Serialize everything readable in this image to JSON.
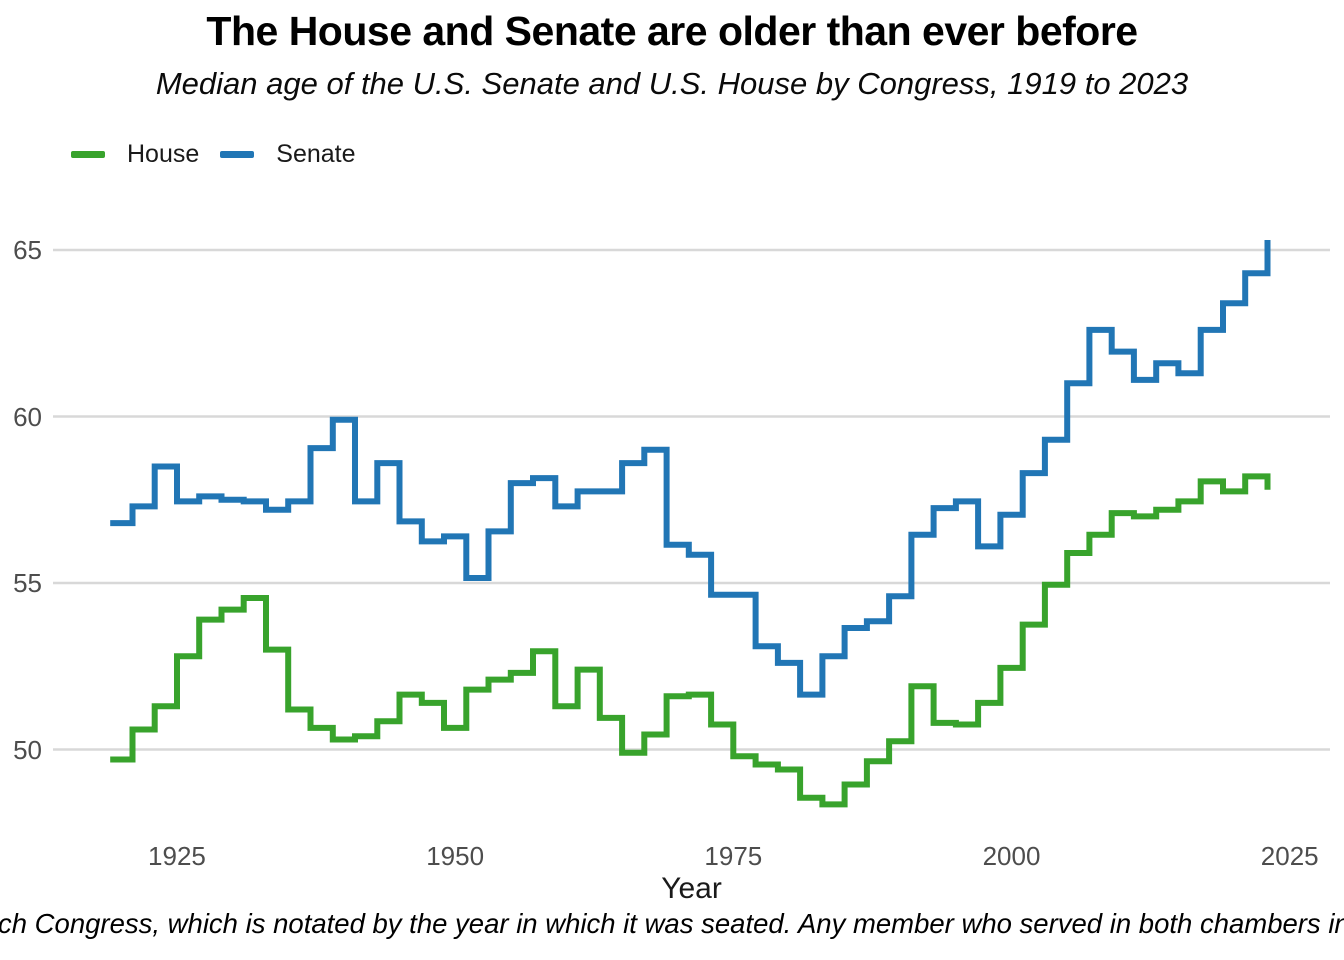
{
  "header": {
    "title": "The House and Senate are older than ever before",
    "subtitle": "Median age of the U.S. Senate and U.S. House by Congress, 1919 to 2023"
  },
  "legend": {
    "items": [
      {
        "label": "House",
        "color": "#38a32c"
      },
      {
        "label": "Senate",
        "color": "#2176b5"
      }
    ]
  },
  "caption": {
    "text": "ch Congress, which is notated by the year in which it was seated. Any member who served in both chambers in"
  },
  "chart_data": {
    "type": "line",
    "line_style": "step-hv",
    "title": "The House and Senate are older than ever before",
    "subtitle": "Median age of the U.S. Senate and U.S. House by Congress, 1919 to 2023",
    "xlabel": "Year",
    "ylabel": "",
    "grid": "horizontal-gridlines-only",
    "legend_position": "top-left",
    "xlim": [
      1917,
      2028
    ],
    "ylim": [
      48,
      66.5
    ],
    "x_ticks": [
      "1925",
      "1950",
      "1975",
      "2000",
      "2025"
    ],
    "y_ticks": [
      "50",
      "55",
      "60",
      "65"
    ],
    "x": [
      1919,
      1921,
      1923,
      1925,
      1927,
      1929,
      1931,
      1933,
      1935,
      1937,
      1939,
      1941,
      1943,
      1945,
      1947,
      1949,
      1951,
      1953,
      1955,
      1957,
      1959,
      1961,
      1963,
      1965,
      1967,
      1969,
      1971,
      1973,
      1975,
      1977,
      1979,
      1981,
      1983,
      1985,
      1987,
      1989,
      1991,
      1993,
      1995,
      1997,
      1999,
      2001,
      2003,
      2005,
      2007,
      2009,
      2011,
      2013,
      2015,
      2017,
      2019,
      2021,
      2023
    ],
    "series": [
      {
        "name": "House",
        "color": "#38a32c",
        "values": [
          49.7,
          50.6,
          51.3,
          52.8,
          53.9,
          54.2,
          54.55,
          53.0,
          51.2,
          50.65,
          50.3,
          50.4,
          50.85,
          51.65,
          51.4,
          50.65,
          51.8,
          52.1,
          52.3,
          52.95,
          51.3,
          52.4,
          50.95,
          49.9,
          50.45,
          51.6,
          51.65,
          50.75,
          49.8,
          49.55,
          49.4,
          48.55,
          48.35,
          48.95,
          49.65,
          50.25,
          51.9,
          50.8,
          50.75,
          51.4,
          52.45,
          53.75,
          54.95,
          55.9,
          56.45,
          57.1,
          57.0,
          57.2,
          57.45,
          58.05,
          57.75,
          58.2,
          57.8
        ]
      },
      {
        "name": "Senate",
        "color": "#2176b5",
        "values": [
          56.8,
          57.3,
          58.5,
          57.45,
          57.6,
          57.5,
          57.45,
          57.2,
          57.45,
          59.05,
          59.9,
          57.45,
          58.6,
          56.85,
          56.25,
          56.4,
          55.15,
          56.55,
          58.0,
          58.15,
          57.3,
          57.75,
          57.75,
          58.6,
          59.0,
          56.15,
          55.85,
          54.65,
          54.65,
          53.1,
          52.6,
          51.65,
          52.8,
          53.65,
          53.85,
          54.6,
          56.45,
          57.25,
          57.45,
          56.1,
          57.05,
          58.3,
          59.3,
          61.0,
          62.6,
          61.95,
          61.1,
          61.6,
          61.3,
          62.6,
          63.4,
          64.3,
          65.3
        ]
      }
    ]
  }
}
